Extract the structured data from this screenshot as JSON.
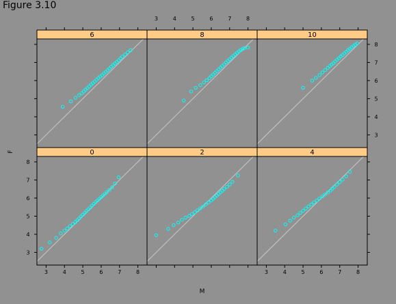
{
  "figure": {
    "title": "Figure 3.10",
    "colors": {
      "background": "#919191",
      "strip": "#ffcc88",
      "points": "#00ffff",
      "refline": "#c8c8c8",
      "frame": "#000000"
    }
  },
  "chart_data": {
    "type": "scatter",
    "xlabel": "M",
    "ylabel": "F",
    "xlim": [
      2.5,
      8.5
    ],
    "ylim": [
      2.3,
      8.3
    ],
    "xticks": [
      3,
      4,
      5,
      6,
      7,
      8
    ],
    "yticks": [
      3,
      4,
      5,
      6,
      7,
      8
    ],
    "reference_line": "y = x",
    "panels": [
      {
        "label": "6",
        "row": 1,
        "col": 0,
        "x": [
          3.9,
          4.35,
          4.6,
          4.8,
          4.95,
          5.05,
          5.15,
          5.25,
          5.35,
          5.45,
          5.55,
          5.65,
          5.75,
          5.85,
          5.95,
          6.05,
          6.15,
          6.25,
          6.35,
          6.45,
          6.55,
          6.65,
          6.75,
          6.85,
          6.95,
          7.05,
          7.15,
          7.3,
          7.45,
          7.6
        ],
        "y": [
          4.55,
          4.85,
          5.05,
          5.2,
          5.3,
          5.4,
          5.5,
          5.58,
          5.68,
          5.78,
          5.86,
          5.95,
          6.05,
          6.14,
          6.22,
          6.3,
          6.39,
          6.48,
          6.57,
          6.66,
          6.76,
          6.86,
          6.94,
          7.03,
          7.12,
          7.22,
          7.32,
          7.44,
          7.56,
          7.68
        ]
      },
      {
        "label": "8",
        "row": 1,
        "col": 1,
        "x": [
          4.5,
          4.9,
          5.15,
          5.4,
          5.6,
          5.75,
          5.9,
          6.0,
          6.1,
          6.2,
          6.3,
          6.4,
          6.5,
          6.6,
          6.7,
          6.8,
          6.9,
          7.0,
          7.1,
          7.2,
          7.3,
          7.4,
          7.5,
          7.6,
          7.7,
          7.8,
          8.0
        ],
        "y": [
          4.9,
          5.4,
          5.6,
          5.75,
          5.9,
          6.02,
          6.14,
          6.24,
          6.33,
          6.43,
          6.52,
          6.62,
          6.71,
          6.8,
          6.9,
          7.0,
          7.09,
          7.18,
          7.27,
          7.36,
          7.45,
          7.53,
          7.61,
          7.68,
          7.74,
          7.8,
          7.82
        ]
      },
      {
        "label": "10",
        "row": 1,
        "col": 2,
        "x": [
          5.0,
          5.5,
          5.7,
          5.9,
          6.05,
          6.2,
          6.35,
          6.45,
          6.55,
          6.65,
          6.75,
          6.85,
          6.95,
          7.05,
          7.15,
          7.25,
          7.35,
          7.45,
          7.55,
          7.65,
          7.75,
          7.85,
          7.95
        ],
        "y": [
          5.6,
          6.0,
          6.15,
          6.3,
          6.45,
          6.58,
          6.7,
          6.8,
          6.88,
          6.96,
          7.06,
          7.15,
          7.24,
          7.33,
          7.41,
          7.5,
          7.59,
          7.68,
          7.76,
          7.84,
          7.92,
          7.98,
          8.05
        ]
      },
      {
        "label": "0",
        "row": 0,
        "col": 0,
        "x": [
          2.75,
          3.2,
          3.55,
          3.8,
          4.0,
          4.15,
          4.3,
          4.45,
          4.6,
          4.7,
          4.8,
          4.9,
          5.0,
          5.1,
          5.2,
          5.3,
          5.4,
          5.5,
          5.6,
          5.7,
          5.8,
          5.9,
          6.0,
          6.1,
          6.2,
          6.3,
          6.45,
          6.6,
          6.75,
          6.95
        ],
        "y": [
          3.2,
          3.55,
          3.8,
          4.05,
          4.2,
          4.32,
          4.45,
          4.57,
          4.68,
          4.78,
          4.88,
          4.98,
          5.08,
          5.18,
          5.28,
          5.38,
          5.48,
          5.58,
          5.68,
          5.78,
          5.87,
          5.96,
          6.05,
          6.14,
          6.23,
          6.32,
          6.45,
          6.6,
          6.8,
          7.15
        ]
      },
      {
        "label": "2",
        "row": 0,
        "col": 1,
        "x": [
          3.0,
          3.65,
          3.95,
          4.2,
          4.4,
          4.6,
          4.8,
          4.95,
          5.1,
          5.25,
          5.4,
          5.55,
          5.7,
          5.85,
          6.0,
          6.1,
          6.2,
          6.3,
          6.4,
          6.5,
          6.6,
          6.7,
          6.85,
          7.0,
          7.15,
          7.45
        ],
        "y": [
          3.95,
          4.3,
          4.5,
          4.65,
          4.8,
          4.92,
          5.02,
          5.12,
          5.22,
          5.32,
          5.43,
          5.54,
          5.65,
          5.76,
          5.87,
          5.96,
          6.05,
          6.14,
          6.23,
          6.32,
          6.41,
          6.5,
          6.62,
          6.75,
          6.9,
          7.25
        ]
      },
      {
        "label": "4",
        "row": 0,
        "col": 2,
        "x": [
          3.5,
          4.05,
          4.3,
          4.5,
          4.7,
          4.85,
          5.0,
          5.15,
          5.3,
          5.45,
          5.6,
          5.75,
          5.9,
          6.05,
          6.2,
          6.35,
          6.5,
          6.6,
          6.7,
          6.85,
          7.0,
          7.15,
          7.35,
          7.55
        ],
        "y": [
          4.2,
          4.55,
          4.75,
          4.92,
          5.05,
          5.18,
          5.3,
          5.42,
          5.54,
          5.65,
          5.76,
          5.87,
          5.98,
          6.09,
          6.2,
          6.31,
          6.42,
          6.52,
          6.62,
          6.75,
          6.88,
          7.02,
          7.2,
          7.45
        ]
      }
    ]
  }
}
